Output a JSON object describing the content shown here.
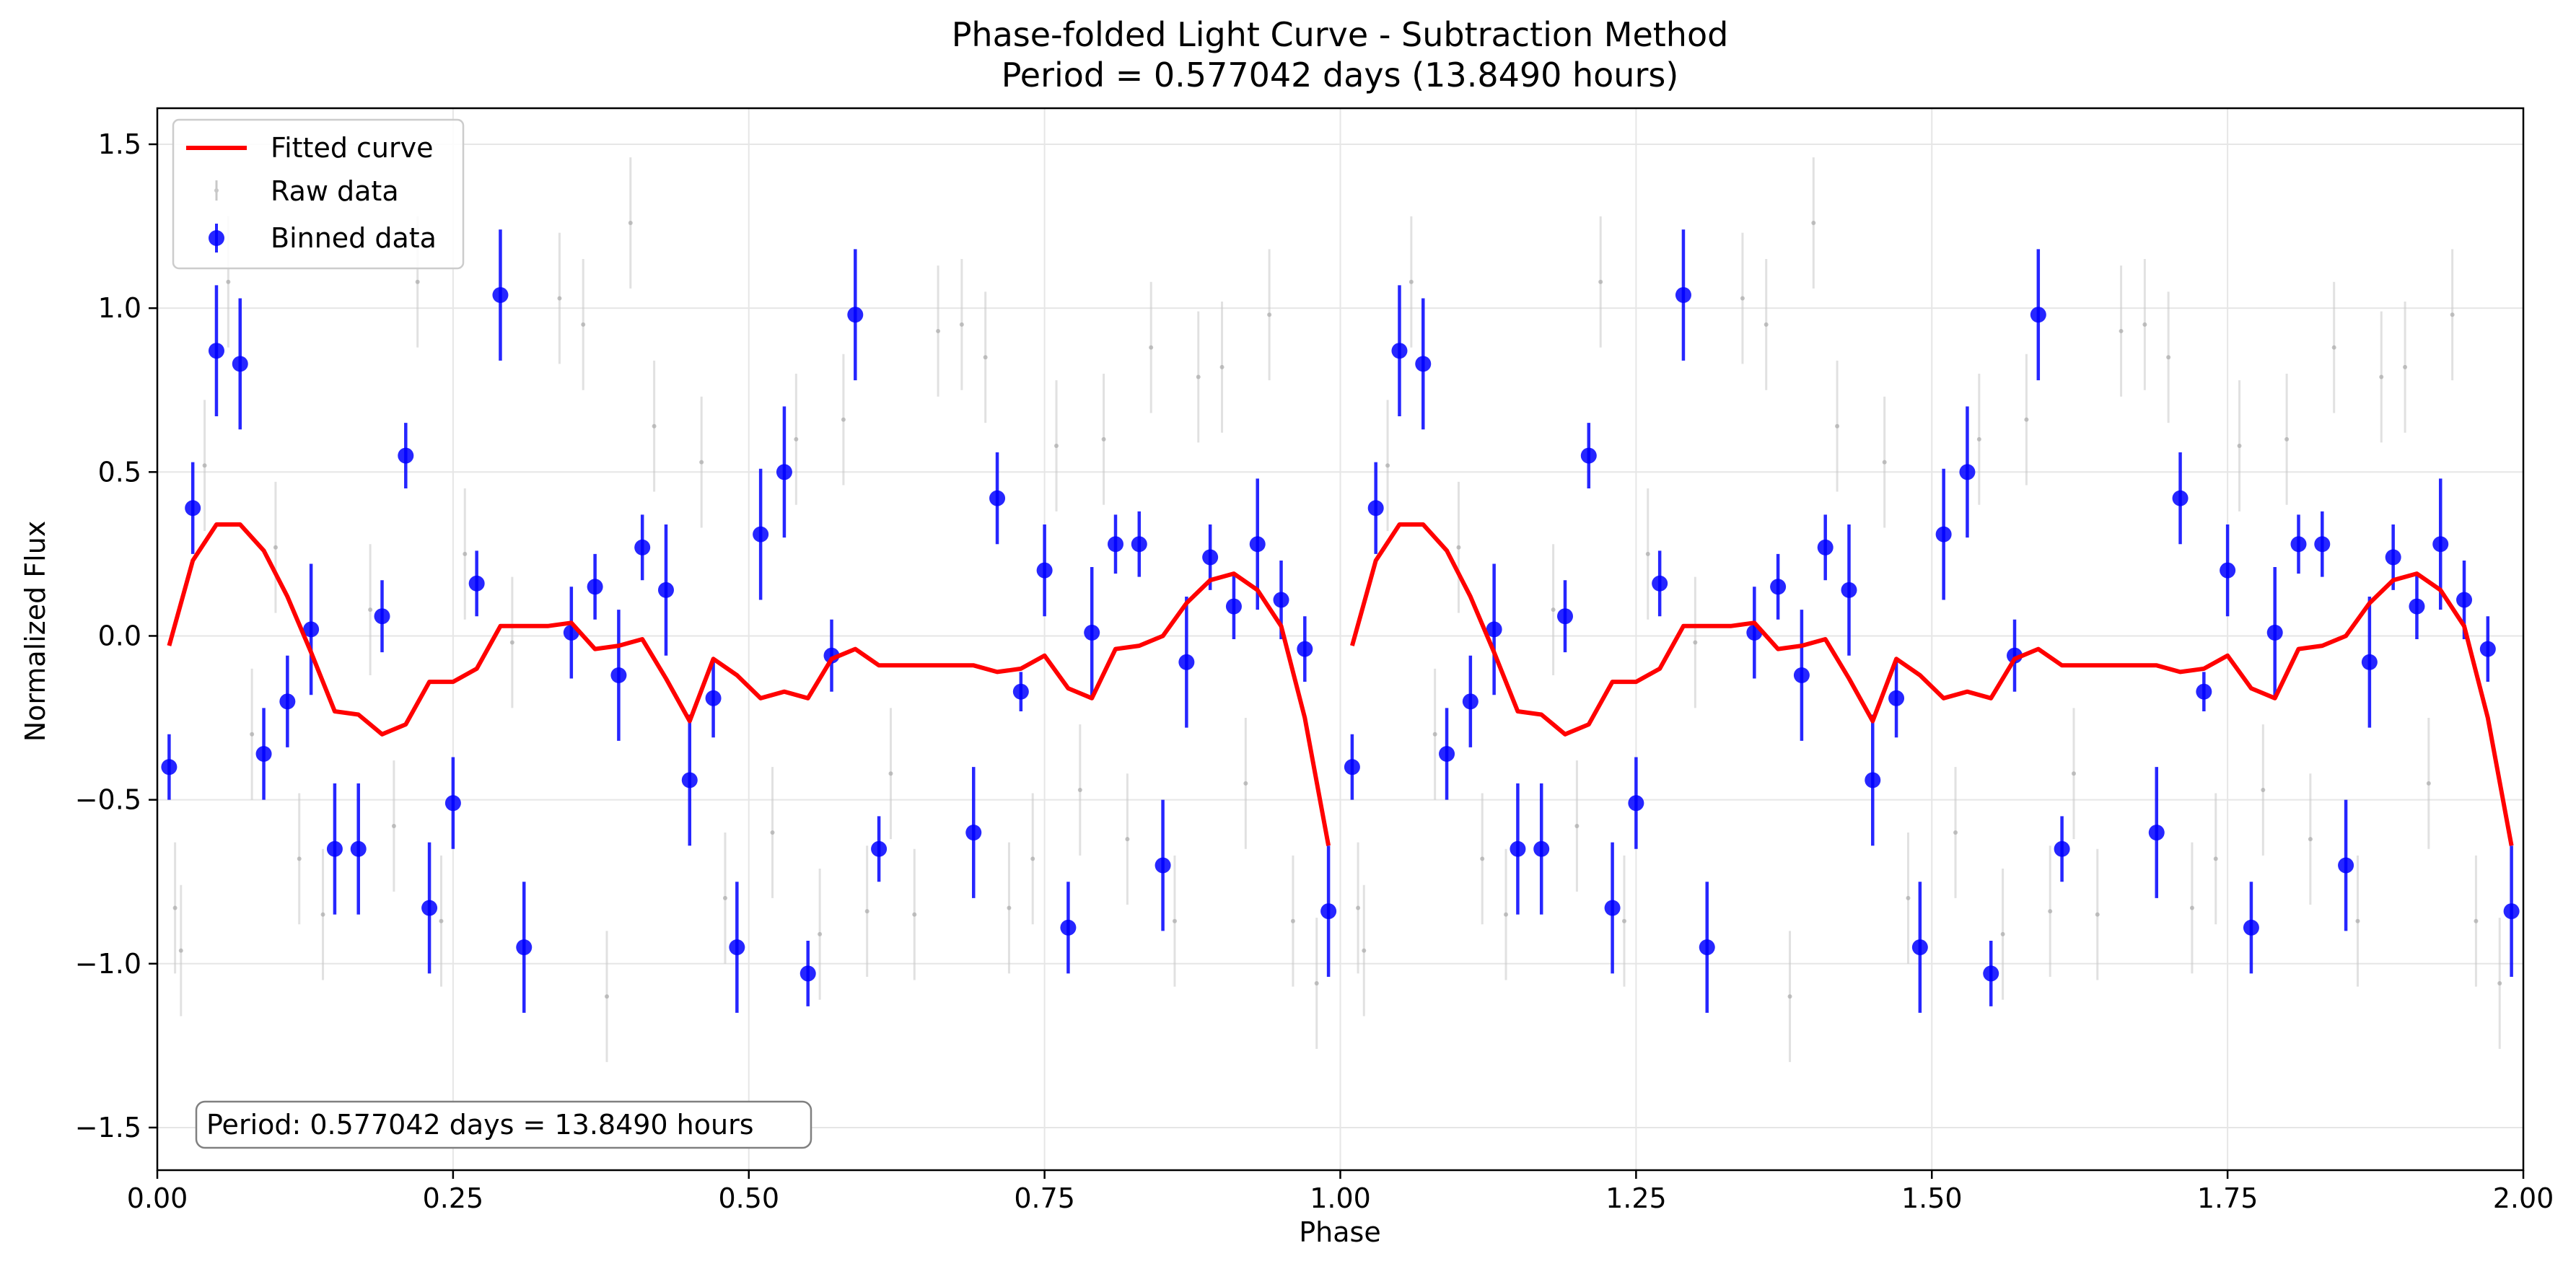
{
  "chart_data": {
    "type": "scatter",
    "title": "Phase-folded Light Curve - Subtraction Method",
    "subtitle": "Period = 0.577042 days (13.8490 hours)",
    "xlabel": "Phase",
    "ylabel": "Normalized Flux",
    "xlim": [
      0.0,
      2.0
    ],
    "ylim": [
      -1.63,
      1.61
    ],
    "xticks": [
      0.0,
      0.25,
      0.5,
      0.75,
      1.0,
      1.25,
      1.5,
      1.75,
      2.0
    ],
    "xtick_labels": [
      "0.00",
      "0.25",
      "0.50",
      "0.75",
      "1.00",
      "1.25",
      "1.50",
      "1.75",
      "2.00"
    ],
    "yticks": [
      -1.5,
      -1.0,
      -0.5,
      0.0,
      0.5,
      1.0,
      1.5
    ],
    "ytick_labels": [
      "−1.5",
      "−1.0",
      "−0.5",
      "0.0",
      "0.5",
      "1.0",
      "1.5"
    ],
    "grid": true,
    "legend_position": "top-left",
    "annotation": "Period: 0.577042 days = 13.8490 hours",
    "colors": {
      "fit": "#ff0000",
      "binned": "#0000ff",
      "raw": "#c8c8c8"
    },
    "series": [
      {
        "name": "Fitted curve",
        "kind": "line",
        "segments": [
          {
            "x": [
              0.01,
              0.03,
              0.05,
              0.07,
              0.09,
              0.11,
              0.13,
              0.15,
              0.17,
              0.19,
              0.21,
              0.23,
              0.25,
              0.27,
              0.29,
              0.31,
              0.33,
              0.35,
              0.37,
              0.39,
              0.41,
              0.43,
              0.45,
              0.47,
              0.49,
              0.51,
              0.53,
              0.55,
              0.57,
              0.59,
              0.61,
              0.69,
              0.71,
              0.73,
              0.75,
              0.77,
              0.79,
              0.81,
              0.83,
              0.85,
              0.87,
              0.89,
              0.91,
              0.93,
              0.95,
              0.97,
              0.99
            ],
            "y": [
              -0.03,
              0.23,
              0.34,
              0.34,
              0.26,
              0.12,
              -0.05,
              -0.23,
              -0.24,
              -0.3,
              -0.27,
              -0.14,
              -0.14,
              -0.1,
              0.03,
              0.03,
              0.03,
              0.04,
              -0.04,
              -0.03,
              -0.01,
              -0.13,
              -0.26,
              -0.07,
              -0.12,
              -0.19,
              -0.17,
              -0.19,
              -0.07,
              -0.04,
              -0.09,
              -0.09,
              -0.11,
              -0.1,
              -0.06,
              -0.16,
              -0.19,
              -0.04,
              -0.03,
              0.0,
              0.1,
              0.17,
              0.19,
              0.14,
              0.03,
              -0.25,
              -0.64
            ]
          },
          {
            "x": [
              1.01,
              1.03,
              1.05,
              1.07,
              1.09,
              1.11,
              1.13,
              1.15,
              1.17,
              1.19,
              1.21,
              1.23,
              1.25,
              1.27,
              1.29,
              1.31,
              1.33,
              1.35,
              1.37,
              1.39,
              1.41,
              1.43,
              1.45,
              1.47,
              1.49,
              1.51,
              1.53,
              1.55,
              1.57,
              1.59,
              1.61,
              1.69,
              1.71,
              1.73,
              1.75,
              1.77,
              1.79,
              1.81,
              1.83,
              1.85,
              1.87,
              1.89,
              1.91,
              1.93,
              1.95,
              1.97,
              1.99
            ],
            "y": [
              -0.03,
              0.23,
              0.34,
              0.34,
              0.26,
              0.12,
              -0.05,
              -0.23,
              -0.24,
              -0.3,
              -0.27,
              -0.14,
              -0.14,
              -0.1,
              0.03,
              0.03,
              0.03,
              0.04,
              -0.04,
              -0.03,
              -0.01,
              -0.13,
              -0.26,
              -0.07,
              -0.12,
              -0.19,
              -0.17,
              -0.19,
              -0.07,
              -0.04,
              -0.09,
              -0.09,
              -0.11,
              -0.1,
              -0.06,
              -0.16,
              -0.19,
              -0.04,
              -0.03,
              0.0,
              0.1,
              0.17,
              0.19,
              0.14,
              0.03,
              -0.25,
              -0.64
            ]
          }
        ]
      },
      {
        "name": "Raw data",
        "kind": "errorbar",
        "x": [
          0.015,
          0.02,
          0.04,
          0.06,
          0.08,
          0.1,
          0.12,
          0.14,
          0.18,
          0.2,
          0.22,
          0.24,
          0.26,
          0.3,
          0.34,
          0.36,
          0.38,
          0.4,
          0.42,
          0.46,
          0.48,
          0.52,
          0.54,
          0.56,
          0.58,
          0.6,
          0.62,
          0.64,
          0.66,
          0.68,
          0.7,
          0.72,
          0.74,
          0.76,
          0.78,
          0.8,
          0.82,
          0.84,
          0.86,
          0.88,
          0.9,
          0.92,
          0.94,
          0.96,
          0.98,
          1.015,
          1.02,
          1.04,
          1.06,
          1.08,
          1.1,
          1.12,
          1.14,
          1.18,
          1.2,
          1.22,
          1.24,
          1.26,
          1.3,
          1.34,
          1.36,
          1.38,
          1.4,
          1.42,
          1.46,
          1.48,
          1.52,
          1.54,
          1.56,
          1.58,
          1.6,
          1.62,
          1.64,
          1.66,
          1.68,
          1.7,
          1.72,
          1.74,
          1.76,
          1.78,
          1.8,
          1.82,
          1.84,
          1.86,
          1.88,
          1.9,
          1.92,
          1.94,
          1.96,
          1.98
        ],
        "y": [
          -0.83,
          -0.96,
          0.52,
          1.08,
          -0.3,
          0.27,
          -0.68,
          -0.85,
          0.08,
          -0.58,
          1.08,
          -0.87,
          0.25,
          -0.02,
          1.03,
          0.95,
          -1.1,
          1.26,
          0.64,
          0.53,
          -0.8,
          -0.6,
          0.6,
          -0.91,
          0.66,
          -0.84,
          -0.42,
          -0.85,
          0.93,
          0.95,
          0.85,
          -0.83,
          -0.68,
          0.58,
          -0.47,
          0.6,
          -0.62,
          0.88,
          -0.87,
          0.79,
          0.82,
          -0.45,
          0.98,
          -0.87,
          -1.06,
          -0.83,
          -0.96,
          0.52,
          1.08,
          -0.3,
          0.27,
          -0.68,
          -0.85,
          0.08,
          -0.58,
          1.08,
          -0.87,
          0.25,
          -0.02,
          1.03,
          0.95,
          -1.1,
          1.26,
          0.64,
          0.53,
          -0.8,
          -0.6,
          0.6,
          -0.91,
          0.66,
          -0.84,
          -0.42,
          -0.85,
          0.93,
          0.95,
          0.85,
          -0.83,
          -0.68,
          0.58,
          -0.47,
          0.6,
          -0.62,
          0.88,
          -0.87,
          0.79,
          0.82,
          -0.45,
          0.98,
          -0.87,
          -1.06
        ],
        "yerr": 0.2
      },
      {
        "name": "Binned data",
        "kind": "errorbar",
        "x": [
          0.01,
          0.03,
          0.05,
          0.07,
          0.09,
          0.11,
          0.13,
          0.15,
          0.17,
          0.19,
          0.21,
          0.23,
          0.25,
          0.27,
          0.29,
          0.31,
          0.35,
          0.37,
          0.39,
          0.41,
          0.43,
          0.45,
          0.47,
          0.49,
          0.51,
          0.53,
          0.55,
          0.57,
          0.59,
          0.61,
          0.69,
          0.71,
          0.73,
          0.75,
          0.77,
          0.79,
          0.81,
          0.83,
          0.85,
          0.87,
          0.89,
          0.91,
          0.93,
          0.95,
          0.97,
          0.99,
          1.01,
          1.03,
          1.05,
          1.07,
          1.09,
          1.11,
          1.13,
          1.15,
          1.17,
          1.19,
          1.21,
          1.23,
          1.25,
          1.27,
          1.29,
          1.31,
          1.35,
          1.37,
          1.39,
          1.41,
          1.43,
          1.45,
          1.47,
          1.49,
          1.51,
          1.53,
          1.55,
          1.57,
          1.59,
          1.61,
          1.69,
          1.71,
          1.73,
          1.75,
          1.77,
          1.79,
          1.81,
          1.83,
          1.85,
          1.87,
          1.89,
          1.91,
          1.93,
          1.95,
          1.97,
          1.99
        ],
        "y": [
          -0.4,
          0.39,
          0.87,
          0.83,
          -0.36,
          -0.2,
          0.02,
          -0.65,
          -0.65,
          0.06,
          0.55,
          -0.83,
          -0.51,
          0.16,
          1.04,
          -0.95,
          0.01,
          0.15,
          -0.12,
          0.27,
          0.14,
          -0.44,
          -0.19,
          -0.95,
          0.31,
          0.5,
          -1.03,
          -0.06,
          0.98,
          -0.65,
          -0.6,
          0.42,
          -0.17,
          0.2,
          -0.89,
          0.01,
          0.28,
          0.28,
          -0.7,
          -0.08,
          0.24,
          0.09,
          0.28,
          0.11,
          -0.04,
          -0.84,
          -0.4,
          0.39,
          0.87,
          0.83,
          -0.36,
          -0.2,
          0.02,
          -0.65,
          -0.65,
          0.06,
          0.55,
          -0.83,
          -0.51,
          0.16,
          1.04,
          -0.95,
          0.01,
          0.15,
          -0.12,
          0.27,
          0.14,
          -0.44,
          -0.19,
          -0.95,
          0.31,
          0.5,
          -1.03,
          -0.06,
          0.98,
          -0.65,
          -0.6,
          0.42,
          -0.17,
          0.2,
          -0.89,
          0.01,
          0.28,
          0.28,
          -0.7,
          -0.08,
          0.24,
          0.09,
          0.28,
          0.11,
          -0.04,
          -0.84
        ],
        "yerr": [
          0.1,
          0.14,
          0.2,
          0.2,
          0.14,
          0.14,
          0.2,
          0.2,
          0.2,
          0.11,
          0.1,
          0.2,
          0.14,
          0.1,
          0.2,
          0.2,
          0.14,
          0.1,
          0.2,
          0.1,
          0.2,
          0.2,
          0.12,
          0.2,
          0.2,
          0.2,
          0.1,
          0.11,
          0.2,
          0.1,
          0.2,
          0.14,
          0.06,
          0.14,
          0.14,
          0.2,
          0.09,
          0.1,
          0.2,
          0.2,
          0.1,
          0.1,
          0.2,
          0.12,
          0.1,
          0.2,
          0.1,
          0.14,
          0.2,
          0.2,
          0.14,
          0.14,
          0.2,
          0.2,
          0.2,
          0.11,
          0.1,
          0.2,
          0.14,
          0.1,
          0.2,
          0.2,
          0.14,
          0.1,
          0.2,
          0.1,
          0.2,
          0.2,
          0.12,
          0.2,
          0.2,
          0.2,
          0.1,
          0.11,
          0.2,
          0.1,
          0.2,
          0.14,
          0.06,
          0.14,
          0.14,
          0.2,
          0.09,
          0.1,
          0.2,
          0.2,
          0.1,
          0.1,
          0.2,
          0.12,
          0.1,
          0.2
        ]
      }
    ]
  }
}
